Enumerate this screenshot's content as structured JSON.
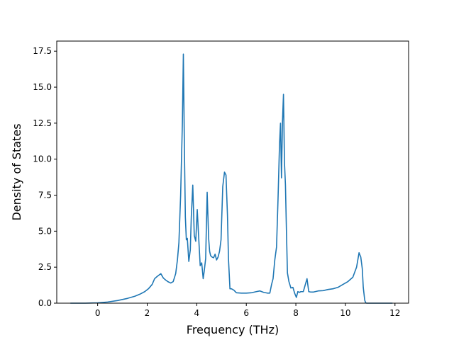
{
  "chart_data": {
    "type": "line",
    "title": "",
    "xlabel": "Frequency (THz)",
    "ylabel": "Density of States",
    "xlim": [
      -1.65,
      12.55
    ],
    "ylim": [
      0,
      18.2
    ],
    "grid": false,
    "legend": "none",
    "line_color": "#1f77b4",
    "xticks": [
      0,
      2,
      4,
      6,
      8,
      10,
      12
    ],
    "xtick_labels": [
      "0",
      "2",
      "4",
      "6",
      "8",
      "10",
      "12"
    ],
    "yticks": [
      0,
      2.5,
      5,
      7.5,
      10,
      12.5,
      15,
      17.5
    ],
    "ytick_labels": [
      "0.0",
      "2.5",
      "5.0",
      "7.5",
      "10.0",
      "12.5",
      "15.0",
      "17.5"
    ],
    "series": [
      {
        "x": [
          -1.1,
          -0.5,
          0.0,
          0.4,
          0.8,
          1.2,
          1.5,
          1.7,
          1.9,
          2.05,
          2.2,
          2.3,
          2.4,
          2.55,
          2.65,
          2.75,
          2.85,
          2.95,
          3.05,
          3.15,
          3.22,
          3.28,
          3.35,
          3.42,
          3.46,
          3.5,
          3.54,
          3.58,
          3.62,
          3.68,
          3.74,
          3.78,
          3.84,
          3.9,
          3.96,
          4.02,
          4.08,
          4.14,
          4.2,
          4.26,
          4.3,
          4.36,
          4.42,
          4.48,
          4.52,
          4.56,
          4.62,
          4.68,
          4.74,
          4.8,
          4.86,
          4.92,
          4.98,
          5.05,
          5.12,
          5.18,
          5.24,
          5.28,
          5.34,
          5.4,
          5.5,
          5.6,
          5.8,
          6.0,
          6.2,
          6.4,
          6.55,
          6.7,
          6.85,
          6.95,
          7.02,
          7.08,
          7.15,
          7.22,
          7.28,
          7.34,
          7.38,
          7.42,
          7.46,
          7.5,
          7.54,
          7.58,
          7.62,
          7.66,
          7.72,
          7.8,
          7.88,
          7.95,
          8.02,
          8.08,
          8.15,
          8.2,
          8.3,
          8.45,
          8.52,
          8.58,
          8.7,
          8.9,
          9.1,
          9.3,
          9.5,
          9.7,
          9.9,
          10.1,
          10.3,
          10.45,
          10.55,
          10.62,
          10.68,
          10.72,
          10.78,
          10.82,
          10.86,
          11.2,
          11.9
        ],
        "y": [
          0.0,
          0.0,
          0.02,
          0.08,
          0.18,
          0.33,
          0.48,
          0.62,
          0.8,
          1.0,
          1.3,
          1.7,
          1.85,
          2.05,
          1.75,
          1.6,
          1.48,
          1.4,
          1.5,
          2.05,
          3.0,
          4.2,
          7.5,
          12.5,
          17.3,
          11.0,
          6.0,
          4.4,
          4.5,
          2.9,
          3.7,
          6.0,
          8.2,
          4.7,
          4.3,
          6.5,
          4.5,
          2.6,
          2.8,
          1.7,
          2.2,
          3.1,
          7.7,
          4.5,
          3.6,
          3.3,
          3.2,
          3.15,
          3.4,
          3.0,
          3.2,
          3.6,
          4.4,
          8.1,
          9.1,
          8.9,
          6.1,
          3.1,
          1.0,
          1.0,
          0.9,
          0.72,
          0.7,
          0.7,
          0.72,
          0.8,
          0.85,
          0.75,
          0.7,
          0.7,
          1.3,
          1.7,
          3.0,
          3.9,
          7.2,
          11.0,
          12.5,
          8.7,
          12.6,
          14.5,
          9.8,
          8.2,
          5.0,
          2.1,
          1.5,
          1.05,
          1.1,
          0.7,
          0.4,
          0.8,
          0.75,
          0.8,
          0.8,
          1.7,
          0.8,
          0.78,
          0.77,
          0.85,
          0.87,
          0.95,
          1.0,
          1.1,
          1.3,
          1.5,
          1.8,
          2.5,
          3.5,
          3.2,
          2.4,
          1.1,
          0.2,
          0.02,
          0.0,
          0.0,
          0.0
        ]
      }
    ]
  }
}
